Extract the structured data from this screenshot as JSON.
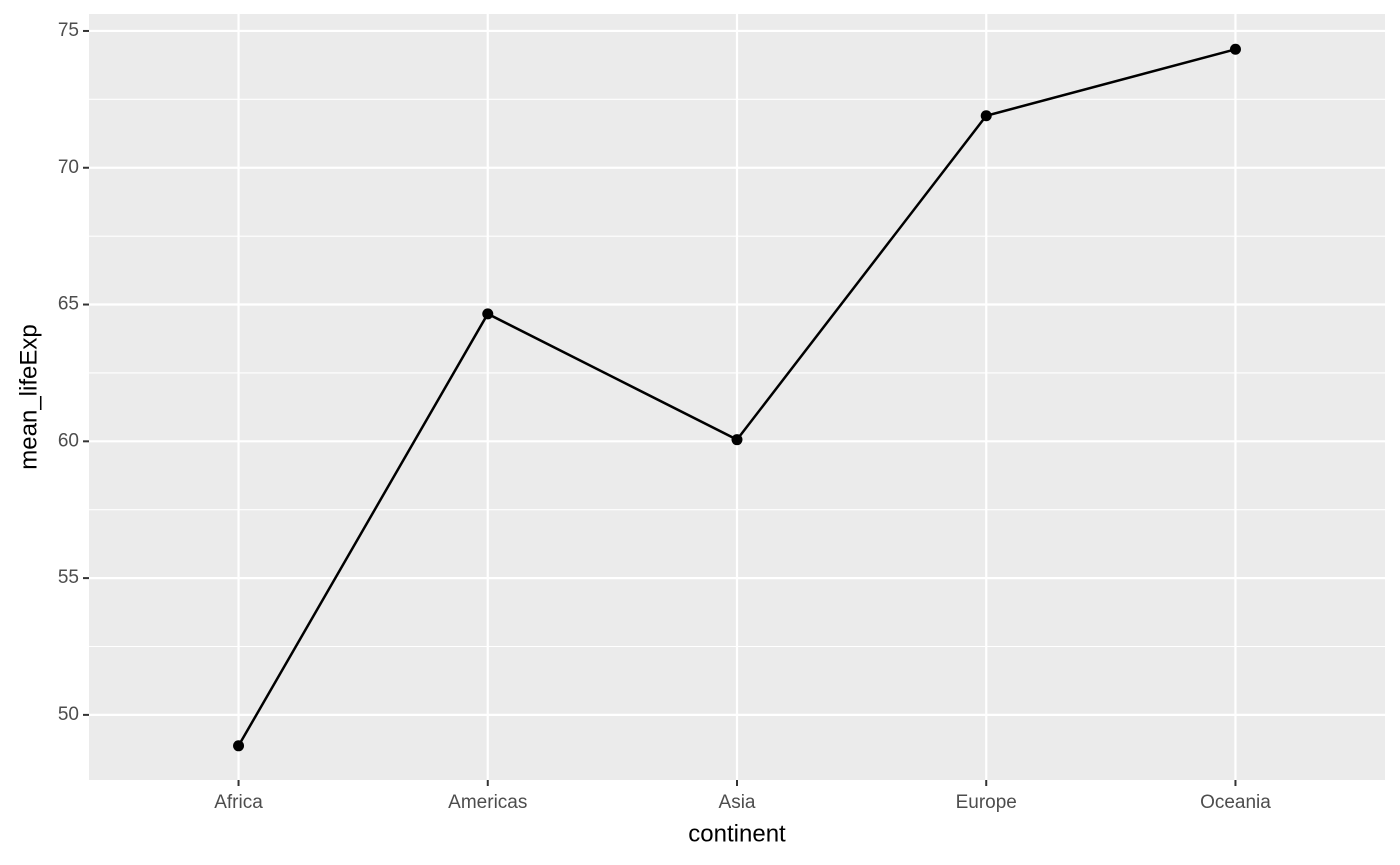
{
  "chart_data": {
    "type": "line",
    "x_label": "continent",
    "y_label": "mean_lifeExp",
    "categories": [
      "Africa",
      "Americas",
      "Asia",
      "Europe",
      "Oceania"
    ],
    "values": [
      48.87,
      64.66,
      60.06,
      71.9,
      74.33
    ],
    "color": "#000000",
    "ylim": [
      47.62,
      75.62
    ],
    "yticks": [
      50,
      55,
      60,
      65,
      70,
      75
    ],
    "grid": true
  }
}
